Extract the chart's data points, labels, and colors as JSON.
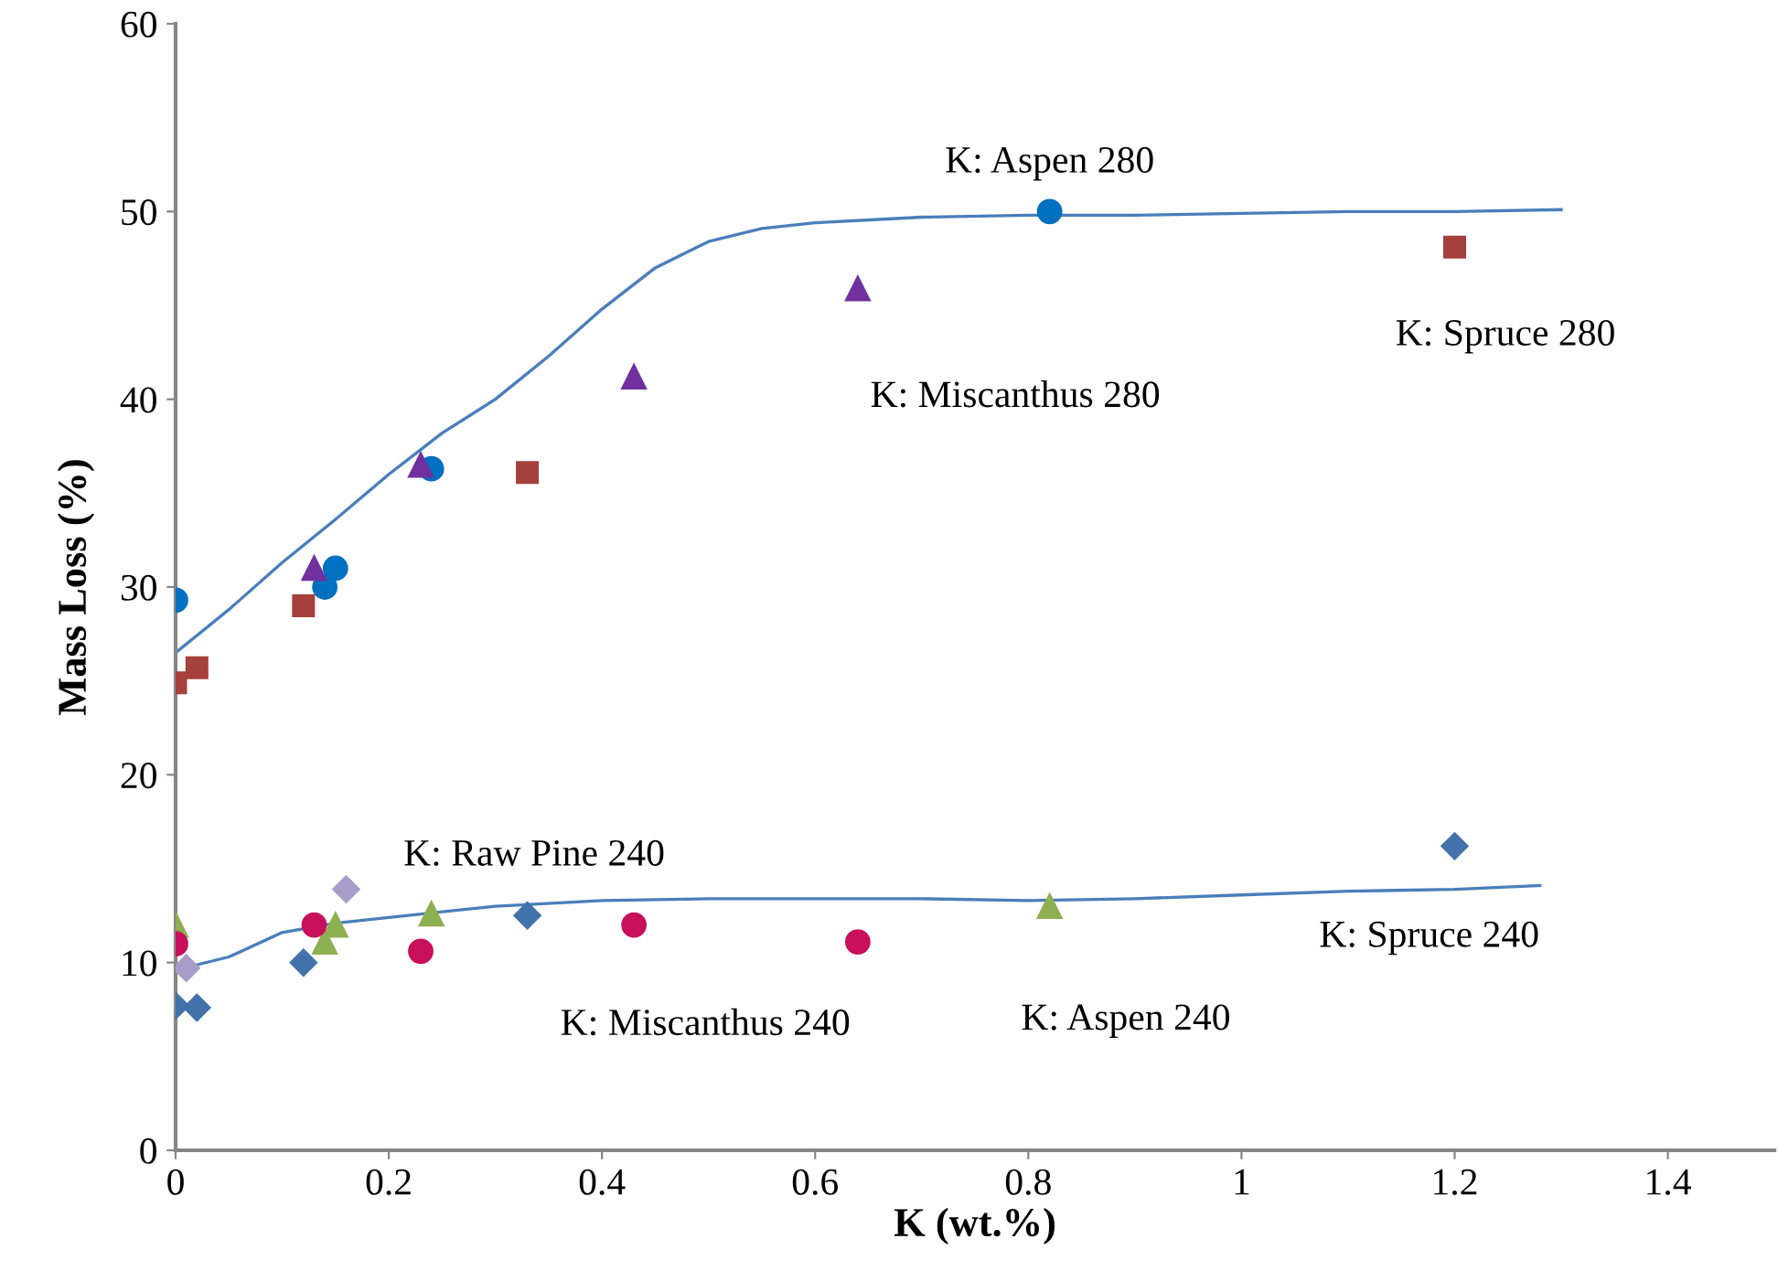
{
  "chart_data": {
    "type": "scatter",
    "xlabel": "K (wt.%)",
    "ylabel": "Mass Loss (%)",
    "xlim": [
      0,
      1.5
    ],
    "xticks": [
      0,
      0.2,
      0.4,
      0.6,
      0.8,
      1,
      1.2,
      1.4
    ],
    "ylim": [
      0,
      60
    ],
    "yticks": [
      0,
      10,
      20,
      30,
      40,
      50,
      60
    ],
    "grid": false,
    "legend": false,
    "series": [
      {
        "name": "K: Aspen 280",
        "color": "#0070c0",
        "marker": "circle",
        "x": [
          0,
          0.14,
          0.15,
          0.24,
          0.82
        ],
        "values": [
          29.3,
          30,
          31,
          36.3,
          50
        ]
      },
      {
        "name": "K: Spruce 280",
        "color": "#a5403c",
        "marker": "square",
        "x": [
          0,
          0.02,
          0.12,
          0.33,
          1.2
        ],
        "values": [
          24.9,
          25.7,
          29,
          36.1,
          48.1
        ]
      },
      {
        "name": "K: Miscanthus 280",
        "color": "#7030a0",
        "marker": "triangle",
        "x": [
          0.13,
          0.23,
          0.43,
          0.64
        ],
        "values": [
          31,
          36.5,
          41.2,
          45.9
        ]
      },
      {
        "name": "K: Spruce 240",
        "color": "#4372aa",
        "marker": "diamond",
        "x": [
          0,
          0.02,
          0.12,
          0.33,
          1.2
        ],
        "values": [
          7.7,
          7.6,
          10,
          12.5,
          16.2
        ]
      },
      {
        "name": "K: Aspen 240",
        "color": "#8db050",
        "marker": "triangle",
        "x": [
          0,
          0.14,
          0.15,
          0.24,
          0.82
        ],
        "values": [
          12,
          11.1,
          12,
          12.6,
          13
        ]
      },
      {
        "name": "K: Miscanthus 240",
        "color": "#c8105c",
        "marker": "circle",
        "x": [
          0,
          0.13,
          0.23,
          0.43,
          0.64
        ],
        "values": [
          11,
          12,
          10.6,
          12,
          11.1
        ]
      },
      {
        "name": "K: Raw Pine 240",
        "color": "#a89cc8",
        "marker": "diamond",
        "x": [
          0.01,
          0.16
        ],
        "values": [
          9.7,
          13.9
        ]
      },
      {
        "type": "line",
        "color": "#4a7ebb",
        "marker": "none",
        "line_style": "solid",
        "x": [
          0,
          0.05,
          0.1,
          0.15,
          0.2,
          0.25,
          0.3,
          0.35,
          0.4,
          0.45,
          0.5,
          0.55,
          0.6,
          0.7,
          0.8,
          0.9,
          1.0,
          1.1,
          1.2,
          1.3
        ],
        "values": [
          26.5,
          28.8,
          31.3,
          33.6,
          36,
          38.2,
          40,
          42.3,
          44.8,
          47,
          48.4,
          49.1,
          49.4,
          49.7,
          49.8,
          49.8,
          49.9,
          50,
          50,
          50.1
        ]
      },
      {
        "type": "line",
        "color": "#4a7ebb",
        "marker": "none",
        "line_style": "solid",
        "x": [
          0,
          0.05,
          0.1,
          0.15,
          0.2,
          0.3,
          0.4,
          0.5,
          0.6,
          0.7,
          0.8,
          0.9,
          1.0,
          1.1,
          1.2,
          1.28
        ],
        "values": [
          9.6,
          10.3,
          11.6,
          12.1,
          12.4,
          13,
          13.3,
          13.4,
          13.4,
          13.4,
          13.3,
          13.4,
          13.6,
          13.8,
          13.9,
          14.1
        ]
      }
    ]
  }
}
